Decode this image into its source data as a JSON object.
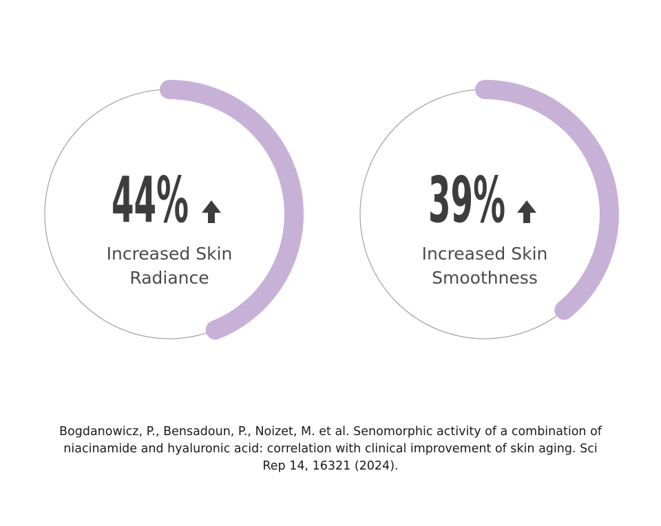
{
  "chart_data": {
    "type": "gauge",
    "series": [
      {
        "value_text": "44%",
        "value": 44,
        "label_lines": [
          "Increased Skin",
          "Radiance"
        ],
        "trend": "up"
      },
      {
        "value_text": "39%",
        "value": 39,
        "label_lines": [
          "Increased Skin",
          "Smoothness"
        ],
        "trend": "up"
      }
    ]
  },
  "colors": {
    "arc": "#c8b1d7",
    "ring": "#a6a6a6",
    "text": "#3d3d3d"
  },
  "icons": {
    "trend": "arrow-up-icon"
  },
  "citation": {
    "text": "Bogdanowicz, P., Bensadoun, P., Noizet, M. et al. Senomorphic activity of a combination of niacinamide and hyaluronic acid: correlation with clinical improvement of skin aging. Sci Rep 14, 16321 (2024)."
  }
}
